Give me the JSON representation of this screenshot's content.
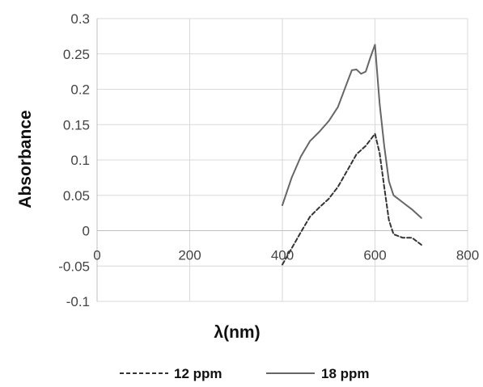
{
  "chart_data": {
    "type": "line",
    "title": "",
    "xlabel": "λ(nm)",
    "ylabel": "Absorbance",
    "xlim": [
      0,
      800
    ],
    "ylim": [
      -0.1,
      0.3
    ],
    "x_ticks": [
      0,
      200,
      400,
      600,
      800
    ],
    "y_ticks": [
      -0.1,
      -0.05,
      0,
      0.05,
      0.1,
      0.15,
      0.2,
      0.25,
      0.3
    ],
    "x_tick_labels": [
      "0",
      "200",
      "400",
      "600",
      "800"
    ],
    "y_tick_labels": [
      "-0.1",
      "-0.05",
      "0",
      "0.05",
      "0.1",
      "0.15",
      "0.2",
      "0.25",
      "0.3"
    ],
    "grid": true,
    "legend": {
      "position": "bottom"
    },
    "series": [
      {
        "name": "12 ppm",
        "style": "dashed",
        "color": "#333333",
        "x": [
          400,
          420,
          440,
          460,
          480,
          500,
          520,
          540,
          560,
          580,
          600,
          610,
          620,
          630,
          640,
          660,
          680,
          700
        ],
        "y": [
          -0.048,
          -0.025,
          -0.002,
          0.02,
          0.033,
          0.045,
          0.062,
          0.085,
          0.108,
          0.12,
          0.137,
          0.11,
          0.062,
          0.015,
          -0.005,
          -0.01,
          -0.01,
          -0.02
        ]
      },
      {
        "name": "18 ppm",
        "style": "solid",
        "color": "#666666",
        "x": [
          400,
          420,
          440,
          460,
          480,
          500,
          520,
          540,
          550,
          560,
          570,
          580,
          590,
          600,
          610,
          620,
          630,
          640,
          660,
          680,
          700
        ],
        "y": [
          0.036,
          0.075,
          0.105,
          0.127,
          0.14,
          0.155,
          0.175,
          0.21,
          0.227,
          0.228,
          0.222,
          0.225,
          0.245,
          0.263,
          0.18,
          0.12,
          0.07,
          0.05,
          0.04,
          0.03,
          0.018
        ]
      }
    ]
  }
}
